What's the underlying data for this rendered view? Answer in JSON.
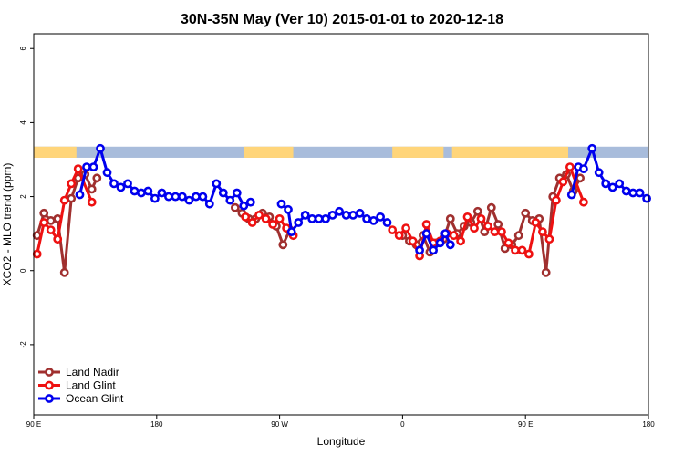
{
  "chart_data": {
    "type": "line",
    "title": "30N-35N May (Ver 10)   2015-01-01 to 2020-12-18",
    "xlabel": "Longitude",
    "ylabel": "XCO2 - MLO trend (ppm)",
    "ylim": [
      -3.9,
      6.4
    ],
    "y_ticks": [
      {
        "value": -2,
        "label": "-2"
      },
      {
        "value": 0,
        "label": "0"
      },
      {
        "value": 2,
        "label": "2"
      },
      {
        "value": 4,
        "label": "4"
      },
      {
        "value": 6,
        "label": "6"
      }
    ],
    "xlim": [
      0,
      360
    ],
    "x_ticks": [
      {
        "value": 0,
        "label": "90 E"
      },
      {
        "value": 72,
        "label": "180"
      },
      {
        "value": 144,
        "label": "90 W"
      },
      {
        "value": 216,
        "label": "0"
      },
      {
        "value": 288,
        "label": "90 E"
      },
      {
        "value": 360,
        "label": "180"
      }
    ],
    "grid": false,
    "legend_position": "bottom-left",
    "land_ocean_band": {
      "y_range": [
        3.05,
        3.35
      ],
      "land_color": "#FFD57A",
      "ocean_color": "#A8BCDB",
      "land_segments": [
        [
          0,
          25
        ],
        [
          123,
          152
        ],
        [
          210,
          240
        ],
        [
          245,
          313
        ]
      ]
    },
    "series": [
      {
        "name": "Land Nadir",
        "color": "#A0302F",
        "points": [
          [
            2,
            0.95
          ],
          [
            6,
            1.55
          ],
          [
            10,
            1.35
          ],
          [
            14,
            1.4
          ],
          [
            18,
            -0.05
          ],
          [
            22,
            1.95
          ],
          [
            26,
            2.5
          ],
          [
            30,
            2.6
          ],
          [
            34,
            2.2
          ],
          [
            37,
            2.5
          ],
          [
            118,
            1.7
          ],
          [
            122,
            1.55
          ],
          [
            126,
            1.4
          ],
          [
            130,
            1.4
          ],
          [
            134,
            1.55
          ],
          [
            138,
            1.45
          ],
          [
            142,
            1.2
          ],
          [
            146,
            0.7
          ],
          [
            150,
            1.1
          ],
          [
            216,
            0.95
          ],
          [
            220,
            0.8
          ],
          [
            224,
            0.7
          ],
          [
            228,
            0.95
          ],
          [
            232,
            0.5
          ],
          [
            236,
            0.75
          ],
          [
            240,
            0.85
          ],
          [
            244,
            1.4
          ],
          [
            248,
            1.0
          ],
          [
            252,
            1.2
          ],
          [
            256,
            1.3
          ],
          [
            260,
            1.6
          ],
          [
            264,
            1.05
          ],
          [
            268,
            1.7
          ],
          [
            272,
            1.25
          ],
          [
            276,
            0.6
          ],
          [
            280,
            0.7
          ],
          [
            284,
            0.95
          ],
          [
            288,
            1.55
          ],
          [
            292,
            1.35
          ],
          [
            296,
            1.4
          ],
          [
            300,
            -0.05
          ],
          [
            304,
            2.0
          ],
          [
            308,
            2.5
          ],
          [
            312,
            2.6
          ],
          [
            316,
            2.15
          ],
          [
            320,
            2.5
          ]
        ]
      },
      {
        "name": "Land Glint",
        "color": "#EE1111",
        "points": [
          [
            2,
            0.45
          ],
          [
            6,
            1.3
          ],
          [
            10,
            1.1
          ],
          [
            14,
            0.85
          ],
          [
            18,
            1.9
          ],
          [
            22,
            2.35
          ],
          [
            26,
            2.75
          ],
          [
            34,
            1.85
          ],
          [
            124,
            1.45
          ],
          [
            128,
            1.3
          ],
          [
            132,
            1.5
          ],
          [
            136,
            1.4
          ],
          [
            140,
            1.25
          ],
          [
            144,
            1.4
          ],
          [
            148,
            1.15
          ],
          [
            152,
            0.95
          ],
          [
            210,
            1.1
          ],
          [
            214,
            0.95
          ],
          [
            218,
            1.15
          ],
          [
            222,
            0.8
          ],
          [
            226,
            0.4
          ],
          [
            230,
            1.25
          ],
          [
            234,
            0.75
          ],
          [
            238,
            0.8
          ],
          [
            242,
            1.0
          ],
          [
            246,
            0.95
          ],
          [
            250,
            0.8
          ],
          [
            254,
            1.45
          ],
          [
            258,
            1.15
          ],
          [
            262,
            1.4
          ],
          [
            266,
            1.2
          ],
          [
            270,
            1.05
          ],
          [
            274,
            1.05
          ],
          [
            278,
            0.75
          ],
          [
            282,
            0.55
          ],
          [
            286,
            0.55
          ],
          [
            290,
            0.45
          ],
          [
            294,
            1.3
          ],
          [
            298,
            1.05
          ],
          [
            302,
            0.85
          ],
          [
            306,
            1.9
          ],
          [
            310,
            2.4
          ],
          [
            314,
            2.8
          ],
          [
            322,
            1.85
          ]
        ]
      },
      {
        "name": "Ocean Glint",
        "color": "#0000EE",
        "points": [
          [
            27,
            2.05
          ],
          [
            31,
            2.8
          ],
          [
            35,
            2.8
          ],
          [
            39,
            3.3
          ],
          [
            43,
            2.65
          ],
          [
            47,
            2.35
          ],
          [
            51,
            2.25
          ],
          [
            55,
            2.35
          ],
          [
            59,
            2.15
          ],
          [
            63,
            2.1
          ],
          [
            67,
            2.15
          ],
          [
            71,
            1.95
          ],
          [
            75,
            2.1
          ],
          [
            79,
            2.0
          ],
          [
            83,
            2.0
          ],
          [
            87,
            2.0
          ],
          [
            91,
            1.9
          ],
          [
            95,
            2.0
          ],
          [
            99,
            2.0
          ],
          [
            103,
            1.8
          ],
          [
            107,
            2.35
          ],
          [
            111,
            2.1
          ],
          [
            115,
            1.9
          ],
          [
            119,
            2.1
          ],
          [
            123,
            1.75
          ],
          [
            127,
            1.85
          ],
          [
            145,
            1.8
          ],
          [
            149,
            1.65
          ],
          [
            151,
            1.05
          ],
          [
            155,
            1.3
          ],
          [
            159,
            1.5
          ],
          [
            163,
            1.4
          ],
          [
            167,
            1.4
          ],
          [
            171,
            1.4
          ],
          [
            175,
            1.5
          ],
          [
            179,
            1.6
          ],
          [
            183,
            1.5
          ],
          [
            187,
            1.5
          ],
          [
            191,
            1.55
          ],
          [
            195,
            1.4
          ],
          [
            199,
            1.35
          ],
          [
            203,
            1.45
          ],
          [
            207,
            1.3
          ],
          [
            226,
            0.55
          ],
          [
            230,
            1.0
          ],
          [
            234,
            0.55
          ],
          [
            238,
            0.75
          ],
          [
            241,
            1.0
          ],
          [
            244,
            0.7
          ],
          [
            315,
            2.05
          ],
          [
            319,
            2.8
          ],
          [
            322,
            2.75
          ],
          [
            327,
            3.3
          ],
          [
            331,
            2.65
          ],
          [
            335,
            2.35
          ],
          [
            339,
            2.25
          ],
          [
            343,
            2.35
          ],
          [
            347,
            2.15
          ],
          [
            351,
            2.1
          ],
          [
            355,
            2.1
          ],
          [
            359,
            1.95
          ]
        ]
      }
    ]
  }
}
